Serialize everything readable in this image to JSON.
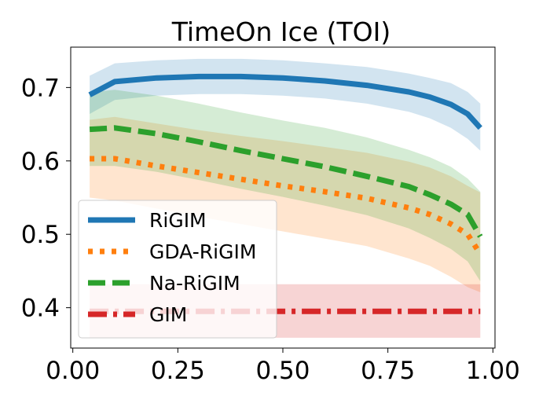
{
  "chart_data": {
    "type": "line",
    "title": "TimeOn Ice (TOI)",
    "xlabel": "",
    "ylabel": "",
    "xlim": [
      -0.005,
      1.005
    ],
    "ylim": [
      0.345,
      0.755
    ],
    "xticks": [
      0.0,
      0.25,
      0.5,
      0.75,
      1.0
    ],
    "xtick_labels": [
      "0.00",
      "0.25",
      "0.50",
      "0.75",
      "1.00"
    ],
    "yticks": [
      0.4,
      0.5,
      0.6,
      0.7
    ],
    "ytick_labels": [
      "0.4",
      "0.5",
      "0.6",
      "0.7"
    ],
    "grid": false,
    "legend_position": "lower-left",
    "x": [
      0.04,
      0.1,
      0.2,
      0.3,
      0.4,
      0.5,
      0.6,
      0.7,
      0.8,
      0.85,
      0.9,
      0.94,
      0.97
    ],
    "series": [
      {
        "name": "RiGIM",
        "color": "#1f77b4",
        "linestyle": "solid",
        "values": [
          0.69,
          0.708,
          0.713,
          0.715,
          0.715,
          0.713,
          0.709,
          0.703,
          0.694,
          0.687,
          0.677,
          0.664,
          0.645
        ],
        "lower": [
          0.664,
          0.683,
          0.689,
          0.691,
          0.691,
          0.689,
          0.685,
          0.678,
          0.667,
          0.658,
          0.645,
          0.63,
          0.614
        ],
        "upper": [
          0.716,
          0.733,
          0.737,
          0.739,
          0.739,
          0.737,
          0.733,
          0.728,
          0.719,
          0.713,
          0.706,
          0.694,
          0.678
        ]
      },
      {
        "name": "GDA-RiGIM",
        "color": "#ff7f0e",
        "linestyle": "dotted",
        "values": [
          0.603,
          0.603,
          0.593,
          0.584,
          0.575,
          0.566,
          0.558,
          0.549,
          0.536,
          0.527,
          0.514,
          0.5,
          0.473
        ],
        "lower": [
          0.55,
          0.546,
          0.535,
          0.524,
          0.514,
          0.504,
          0.494,
          0.484,
          0.467,
          0.457,
          0.442,
          0.428,
          0.421
        ],
        "upper": [
          0.656,
          0.66,
          0.651,
          0.642,
          0.634,
          0.627,
          0.619,
          0.611,
          0.599,
          0.591,
          0.579,
          0.566,
          0.557
        ]
      },
      {
        "name": "Na-RiGIM",
        "color": "#2ca02c",
        "linestyle": "dashed",
        "values": [
          0.643,
          0.645,
          0.637,
          0.626,
          0.614,
          0.603,
          0.592,
          0.579,
          0.565,
          0.554,
          0.541,
          0.527,
          0.497
        ],
        "lower": [
          0.593,
          0.593,
          0.585,
          0.574,
          0.562,
          0.551,
          0.539,
          0.526,
          0.508,
          0.495,
          0.48,
          0.463,
          0.436
        ],
        "upper": [
          0.693,
          0.697,
          0.689,
          0.678,
          0.666,
          0.655,
          0.645,
          0.632,
          0.615,
          0.605,
          0.592,
          0.576,
          0.558
        ]
      },
      {
        "name": "GIM",
        "color": "#d62728",
        "linestyle": "dashdot",
        "values": [
          0.395,
          0.395,
          0.395,
          0.395,
          0.395,
          0.395,
          0.395,
          0.395,
          0.395,
          0.395,
          0.395,
          0.395,
          0.395
        ],
        "lower": [
          0.359,
          0.359,
          0.359,
          0.359,
          0.359,
          0.359,
          0.359,
          0.359,
          0.359,
          0.359,
          0.359,
          0.359,
          0.359
        ],
        "upper": [
          0.432,
          0.432,
          0.432,
          0.432,
          0.432,
          0.432,
          0.432,
          0.432,
          0.432,
          0.432,
          0.432,
          0.432,
          0.432
        ]
      }
    ]
  }
}
